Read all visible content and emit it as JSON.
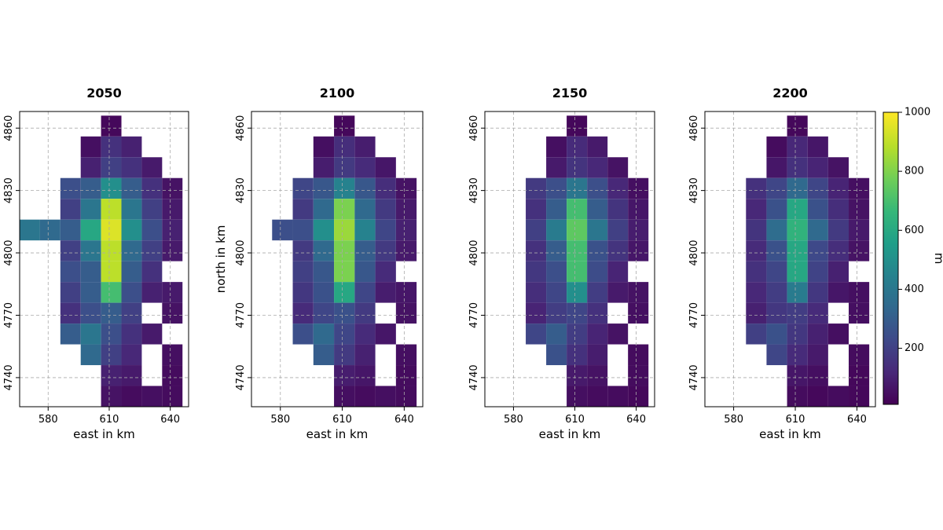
{
  "chart_data": [
    {
      "type": "heatmap",
      "title": "2050",
      "xlabel": "east in km",
      "x": [
        571,
        581,
        591,
        601,
        611,
        621,
        631,
        641
      ],
      "y": [
        4861,
        4851,
        4841,
        4831,
        4821,
        4811,
        4801,
        4791,
        4781,
        4771,
        4761,
        4751,
        4741,
        4731
      ],
      "values": [
        [
          null,
          null,
          null,
          null,
          30,
          null,
          null,
          null
        ],
        [
          null,
          null,
          null,
          50,
          150,
          100,
          null,
          null
        ],
        [
          null,
          null,
          null,
          100,
          200,
          150,
          80,
          null
        ],
        [
          null,
          null,
          250,
          300,
          500,
          300,
          150,
          60
        ],
        [
          null,
          null,
          200,
          400,
          900,
          400,
          200,
          80
        ],
        [
          400,
          350,
          300,
          600,
          950,
          500,
          250,
          100
        ],
        [
          null,
          null,
          200,
          400,
          900,
          350,
          200,
          80
        ],
        [
          null,
          null,
          250,
          300,
          900,
          300,
          150,
          null
        ],
        [
          null,
          null,
          200,
          300,
          700,
          250,
          100,
          80
        ],
        [
          null,
          null,
          150,
          250,
          300,
          200,
          null,
          60
        ],
        [
          null,
          null,
          300,
          400,
          250,
          150,
          80,
          null
        ],
        [
          null,
          null,
          null,
          350,
          200,
          120,
          null,
          50
        ],
        [
          null,
          null,
          null,
          null,
          100,
          80,
          null,
          40
        ],
        [
          null,
          null,
          null,
          null,
          60,
          40,
          50,
          40
        ]
      ],
      "xlim": [
        566,
        649
      ],
      "ylim": [
        4726,
        4868
      ],
      "xticks": [
        580,
        610,
        640
      ],
      "yticks": [
        4740,
        4770,
        4800,
        4830,
        4860
      ],
      "grid": true
    },
    {
      "type": "heatmap",
      "title": "2100",
      "xlabel": "east in km",
      "ylabel": "north in km",
      "x": [
        571,
        581,
        591,
        601,
        611,
        621,
        631,
        641
      ],
      "y": [
        4861,
        4851,
        4841,
        4831,
        4821,
        4811,
        4801,
        4791,
        4781,
        4771,
        4761,
        4751,
        4741,
        4731
      ],
      "values": [
        [
          null,
          null,
          null,
          null,
          30,
          null,
          null,
          null
        ],
        [
          null,
          null,
          null,
          50,
          140,
          90,
          null,
          null
        ],
        [
          null,
          null,
          null,
          90,
          180,
          130,
          70,
          null
        ],
        [
          null,
          null,
          220,
          280,
          450,
          280,
          140,
          60
        ],
        [
          null,
          null,
          180,
          350,
          800,
          350,
          180,
          80
        ],
        [
          null,
          250,
          250,
          500,
          850,
          450,
          220,
          100
        ],
        [
          null,
          null,
          180,
          350,
          800,
          300,
          180,
          80
        ],
        [
          null,
          null,
          200,
          280,
          800,
          280,
          130,
          null
        ],
        [
          null,
          null,
          170,
          260,
          600,
          220,
          90,
          70
        ],
        [
          null,
          null,
          130,
          220,
          260,
          180,
          null,
          60
        ],
        [
          null,
          null,
          250,
          350,
          220,
          130,
          70,
          null
        ],
        [
          null,
          null,
          null,
          300,
          180,
          100,
          null,
          50
        ],
        [
          null,
          null,
          null,
          null,
          90,
          70,
          null,
          40
        ],
        [
          null,
          null,
          null,
          null,
          50,
          40,
          50,
          40
        ]
      ],
      "xlim": [
        566,
        649
      ],
      "ylim": [
        4726,
        4868
      ],
      "xticks": [
        580,
        610,
        640
      ],
      "yticks": [
        4740,
        4770,
        4800,
        4830,
        4860
      ],
      "grid": true
    },
    {
      "type": "heatmap",
      "title": "2150",
      "xlabel": "east in km",
      "x": [
        571,
        581,
        591,
        601,
        611,
        621,
        631,
        641
      ],
      "y": [
        4861,
        4851,
        4841,
        4831,
        4821,
        4811,
        4801,
        4791,
        4781,
        4771,
        4761,
        4751,
        4741,
        4731
      ],
      "values": [
        [
          null,
          null,
          null,
          null,
          30,
          null,
          null,
          null
        ],
        [
          null,
          null,
          null,
          50,
          130,
          80,
          null,
          null
        ],
        [
          null,
          null,
          null,
          80,
          160,
          120,
          60,
          null
        ],
        [
          null,
          null,
          180,
          250,
          400,
          250,
          120,
          50
        ],
        [
          null,
          null,
          150,
          300,
          700,
          300,
          160,
          70
        ],
        [
          null,
          null,
          200,
          420,
          750,
          400,
          200,
          90
        ],
        [
          null,
          null,
          150,
          300,
          700,
          260,
          160,
          70
        ],
        [
          null,
          null,
          170,
          250,
          700,
          240,
          110,
          null
        ],
        [
          null,
          null,
          140,
          220,
          500,
          190,
          80,
          60
        ],
        [
          null,
          null,
          110,
          190,
          220,
          150,
          null,
          50
        ],
        [
          null,
          null,
          220,
          300,
          190,
          110,
          60,
          null
        ],
        [
          null,
          null,
          null,
          260,
          150,
          90,
          null,
          40
        ],
        [
          null,
          null,
          null,
          null,
          80,
          60,
          null,
          40
        ],
        [
          null,
          null,
          null,
          null,
          50,
          40,
          40,
          30
        ]
      ],
      "xlim": [
        566,
        649
      ],
      "ylim": [
        4726,
        4868
      ],
      "xticks": [
        580,
        610,
        640
      ],
      "yticks": [
        4740,
        4770,
        4800,
        4830,
        4860
      ],
      "grid": true
    },
    {
      "type": "heatmap",
      "title": "2200",
      "xlabel": "east in km",
      "x": [
        571,
        581,
        591,
        601,
        611,
        621,
        631,
        641
      ],
      "y": [
        4861,
        4851,
        4841,
        4831,
        4821,
        4811,
        4801,
        4791,
        4781,
        4771,
        4761,
        4751,
        4741,
        4731
      ],
      "values": [
        [
          null,
          null,
          null,
          null,
          30,
          null,
          null,
          null
        ],
        [
          null,
          null,
          null,
          40,
          120,
          70,
          null,
          null
        ],
        [
          null,
          null,
          null,
          70,
          150,
          110,
          60,
          null
        ],
        [
          null,
          null,
          150,
          220,
          350,
          220,
          110,
          50
        ],
        [
          null,
          null,
          120,
          260,
          600,
          260,
          140,
          60
        ],
        [
          null,
          null,
          160,
          360,
          650,
          350,
          180,
          80
        ],
        [
          null,
          null,
          130,
          260,
          600,
          230,
          140,
          60
        ],
        [
          null,
          null,
          150,
          220,
          600,
          210,
          100,
          null
        ],
        [
          null,
          null,
          120,
          190,
          420,
          170,
          70,
          50
        ],
        [
          null,
          null,
          100,
          170,
          190,
          130,
          null,
          50
        ],
        [
          null,
          null,
          200,
          260,
          170,
          100,
          50,
          null
        ],
        [
          null,
          null,
          null,
          220,
          130,
          80,
          null,
          40
        ],
        [
          null,
          null,
          null,
          null,
          70,
          50,
          null,
          30
        ],
        [
          null,
          null,
          null,
          null,
          40,
          30,
          40,
          30
        ]
      ],
      "xlim": [
        566,
        649
      ],
      "ylim": [
        4726,
        4868
      ],
      "xticks": [
        580,
        610,
        640
      ],
      "yticks": [
        4740,
        4770,
        4800,
        4830,
        4860
      ],
      "grid": true,
      "colorbar": {
        "label": "m",
        "lim": [
          10,
          1000
        ],
        "ticks": [
          200,
          400,
          600,
          800,
          1000
        ]
      }
    }
  ]
}
